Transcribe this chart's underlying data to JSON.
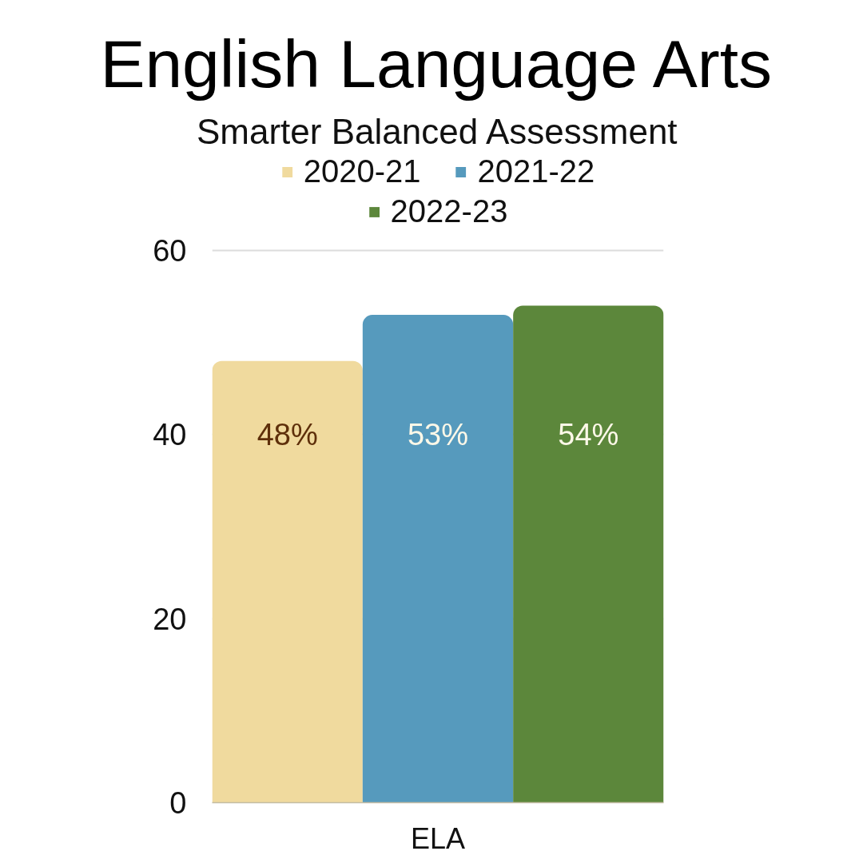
{
  "chart_data": {
    "type": "bar",
    "title": "English Language Arts",
    "subtitle": "Smarter Balanced Assessment",
    "categories": [
      null,
      "ELA",
      null
    ],
    "stacked": true,
    "series": [
      {
        "name": "2020-21",
        "color": "#f0da9e",
        "values": [
          48,
          null,
          null
        ],
        "value_labels": [
          "48%",
          null,
          null
        ]
      },
      {
        "name": "2021-22",
        "color": "#569abd",
        "values": [
          null,
          53,
          null
        ],
        "value_labels": [
          null,
          "53%",
          null
        ]
      },
      {
        "name": "2022-23",
        "color": "#5c873b",
        "values": [
          null,
          null,
          54
        ],
        "value_labels": [
          null,
          null,
          "54%"
        ]
      }
    ],
    "ylim": [
      0,
      60
    ],
    "yticks": [
      0,
      20,
      40,
      60
    ],
    "grid": "y",
    "legend": "top"
  }
}
